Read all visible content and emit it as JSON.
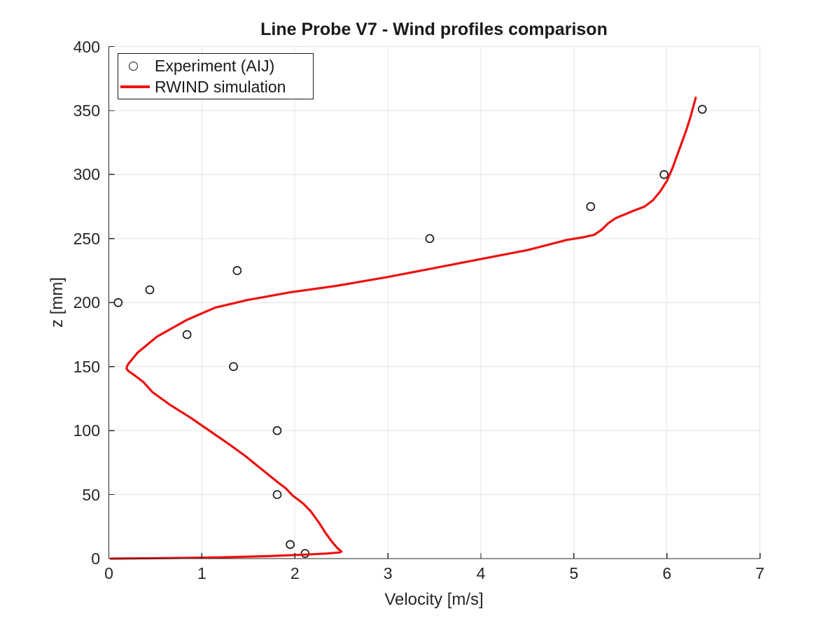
{
  "chart_data": {
    "type": "scatter",
    "title": "Line Probe V7 - Wind profiles comparison",
    "xlabel": "Velocity [m/s]",
    "ylabel": "z [mm]",
    "xlim": [
      0,
      7
    ],
    "ylim": [
      0,
      400
    ],
    "x_ticks": [
      0,
      1,
      2,
      3,
      4,
      5,
      6,
      7
    ],
    "y_ticks": [
      0,
      50,
      100,
      150,
      200,
      250,
      300,
      350,
      400
    ],
    "grid": true,
    "legend_position": "top-left",
    "style": {
      "background": "#ffffff",
      "grid_color": "#e4e4e4",
      "axis_color": "#262626",
      "marker_color": "#1a1a1a",
      "line_color": "#ee1111"
    },
    "series": [
      {
        "name": "Experiment (AIJ)",
        "type": "scatter",
        "marker": "open-circle",
        "color": "#1a1a1a",
        "points": [
          [
            6.38,
            351
          ],
          [
            5.97,
            300
          ],
          [
            5.18,
            275
          ],
          [
            3.45,
            250
          ],
          [
            1.38,
            225
          ],
          [
            0.44,
            210
          ],
          [
            0.1,
            200
          ],
          [
            0.84,
            175
          ],
          [
            1.34,
            150
          ],
          [
            1.81,
            100
          ],
          [
            1.81,
            50
          ],
          [
            1.95,
            11
          ],
          [
            2.11,
            4
          ]
        ]
      },
      {
        "name": "RWIND simulation",
        "type": "line",
        "color": "#ee1111",
        "line_width": 3.2,
        "points": [
          [
            0.02,
            0
          ],
          [
            0.6,
            0.4
          ],
          [
            1.2,
            1.0
          ],
          [
            1.7,
            1.9
          ],
          [
            2.11,
            3.1
          ],
          [
            2.35,
            4.0
          ],
          [
            2.48,
            4.8
          ],
          [
            2.5,
            5.5
          ],
          [
            2.46,
            8
          ],
          [
            2.4,
            13
          ],
          [
            2.33,
            20
          ],
          [
            2.26,
            28
          ],
          [
            2.17,
            37
          ],
          [
            2.09,
            43
          ],
          [
            1.98,
            49
          ],
          [
            1.9,
            55
          ],
          [
            1.81,
            60
          ],
          [
            1.64,
            70
          ],
          [
            1.47,
            80
          ],
          [
            1.28,
            90
          ],
          [
            1.1,
            99
          ],
          [
            0.88,
            110
          ],
          [
            0.66,
            120
          ],
          [
            0.47,
            130
          ],
          [
            0.37,
            138
          ],
          [
            0.28,
            143
          ],
          [
            0.21,
            146.5
          ],
          [
            0.19,
            148.5
          ],
          [
            0.2,
            151
          ],
          [
            0.22,
            153
          ],
          [
            0.31,
            161
          ],
          [
            0.52,
            173.5
          ],
          [
            0.84,
            186.5
          ],
          [
            1.14,
            196
          ],
          [
            1.49,
            202
          ],
          [
            1.95,
            208
          ],
          [
            2.44,
            213
          ],
          [
            3.0,
            220
          ],
          [
            3.5,
            227
          ],
          [
            4.0,
            234
          ],
          [
            4.5,
            241
          ],
          [
            4.93,
            249
          ],
          [
            5.1,
            251
          ],
          [
            5.22,
            253
          ],
          [
            5.3,
            257
          ],
          [
            5.37,
            262
          ],
          [
            5.45,
            266
          ],
          [
            5.55,
            269
          ],
          [
            5.65,
            272
          ],
          [
            5.76,
            275
          ],
          [
            5.85,
            280
          ],
          [
            5.93,
            287
          ],
          [
            6.0,
            295
          ],
          [
            6.06,
            305
          ],
          [
            6.11,
            315
          ],
          [
            6.16,
            325
          ],
          [
            6.21,
            335
          ],
          [
            6.25,
            344
          ],
          [
            6.28,
            352
          ],
          [
            6.31,
            360
          ]
        ]
      }
    ]
  }
}
